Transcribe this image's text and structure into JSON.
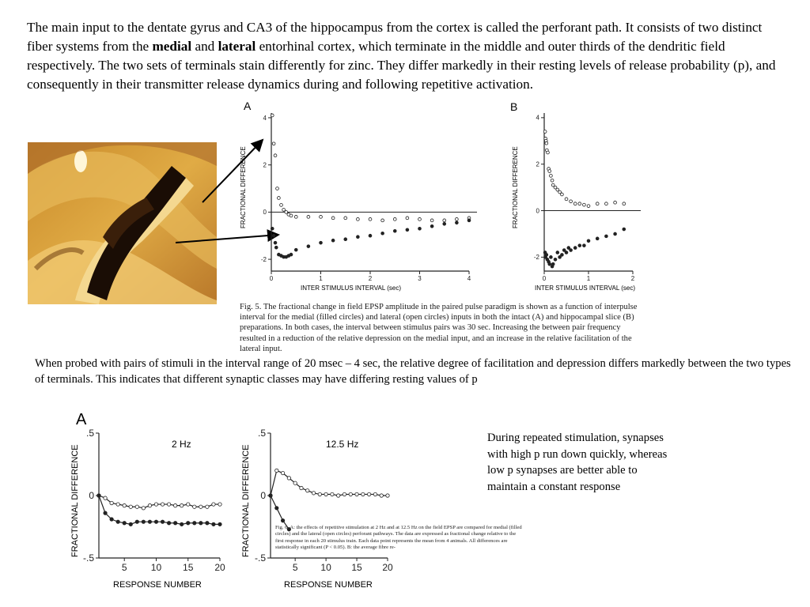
{
  "intro": {
    "part1": "The main input to the dentate gyrus and CA3 of the hippocampus from the cortex is called the perforant path.  It consists of two distinct fiber systems from the ",
    "bold1": "medial",
    "part2": " and ",
    "bold2": "lateral",
    "part3": " entorhinal cortex, which terminate in the middle and outer thirds of the dendritic field respectively.  The two sets of terminals stain differently for zinc. They differ markedly in their resting levels of release probability (p), and consequently in their transmitter release dynamics during and following repetitive activation."
  },
  "fig5": {
    "panel_a_label": "A",
    "panel_b_label": "B",
    "ylabel": "FRACTIONAL  DIFFERENCE",
    "xlabel": "INTER  STIMULUS  INTERVAL  (sec)",
    "caption": "Fig. 5. The fractional change in field EPSP amplitude in the paired pulse paradigm is shown as a function of interpulse interval for the medial (filled circles) and lateral (open circles) inputs in both the intact (A) and hippocampal slice (B) preparations. In both cases, the interval between stimulus pairs was 30 sec. Increasing the between pair frequency resulted in a reduction of the relative depression on the medial input, and an increase in the relative facilitation of the lateral input."
  },
  "middle_text": "When probed with pairs of stimuli in the interval range of 20 msec – 4 sec, the relative degree of facilitation and depression differs markedly between the two types of terminals.  This indicates that different synaptic classes may have differing resting values of p",
  "fig6": {
    "panel_label": "A",
    "ylabel": "FRACTIONAL  DIFFERENCE",
    "xlabel": "RESPONSE  NUMBER",
    "left_title": "2 Hz",
    "right_title": "12.5 Hz",
    "caption": "Fig. 6. A: the effects of repetitive stimulation at 2 Hz and at 12.5 Hz on the field EPSP are compared for medial (filled circles) and the lateral (open circles) perforant pathways. The data are expressed as fractional change relative to the first response in each 20 stimulus train. Each data point represents the mean from 4 animals. All differences are statistically significant (P < 0.05). B: the average fibre re-"
  },
  "side_text": "During repeated stimulation, synapses with high p run down quickly, whereas low p synapses are better able to maintain a constant response",
  "colors": {
    "fig_ink": "#222222",
    "stain_dark": "#1a0d05",
    "stain_gold": "#d9a23c"
  },
  "chart_data": [
    {
      "type": "scatter",
      "panel": "Fig. 5 A",
      "xlabel": "INTER  STIMULUS  INTERVAL  (sec)",
      "ylabel": "FRACTIONAL  DIFFERENCE",
      "xlim": [
        0,
        4
      ],
      "ylim": [
        -2.5,
        4.2
      ],
      "xticks": [
        0,
        1,
        2,
        3,
        4
      ],
      "yticks": [
        -2,
        0,
        2,
        4
      ],
      "series": [
        {
          "marker": "open",
          "x": [
            0.02,
            0.05,
            0.08,
            0.12,
            0.15,
            0.2,
            0.25,
            0.3,
            0.35,
            0.4,
            0.5,
            0.75,
            1.0,
            1.25,
            1.5,
            1.75,
            2.0,
            2.25,
            2.5,
            2.75,
            3.0,
            3.25,
            3.5,
            3.75,
            4.0
          ],
          "y": [
            4.1,
            2.9,
            2.4,
            1.0,
            0.6,
            0.3,
            0.1,
            0.0,
            -0.1,
            -0.15,
            -0.2,
            -0.2,
            -0.2,
            -0.25,
            -0.25,
            -0.3,
            -0.3,
            -0.35,
            -0.3,
            -0.25,
            -0.3,
            -0.35,
            -0.35,
            -0.3,
            -0.25
          ]
        },
        {
          "marker": "filled",
          "x": [
            0.02,
            0.05,
            0.08,
            0.1,
            0.15,
            0.2,
            0.25,
            0.3,
            0.35,
            0.4,
            0.5,
            0.75,
            1.0,
            1.25,
            1.5,
            1.75,
            2.0,
            2.25,
            2.5,
            2.75,
            3.0,
            3.25,
            3.5,
            3.75,
            4.0
          ],
          "y": [
            -0.7,
            -1.0,
            -1.3,
            -1.5,
            -1.8,
            -1.85,
            -1.9,
            -1.9,
            -1.85,
            -1.8,
            -1.6,
            -1.45,
            -1.3,
            -1.2,
            -1.15,
            -1.05,
            -1.0,
            -0.9,
            -0.8,
            -0.75,
            -0.7,
            -0.6,
            -0.5,
            -0.45,
            -0.35
          ]
        }
      ]
    },
    {
      "type": "scatter",
      "panel": "Fig. 5 B",
      "xlabel": "INTER  STIMULUS  INTERVAL  (sec)",
      "ylabel": "FRACTIONAL  DIFFERENCE",
      "xlim": [
        0,
        2
      ],
      "ylim": [
        -2.6,
        4.2
      ],
      "xticks": [
        0,
        1,
        2
      ],
      "yticks": [
        -2,
        0,
        2,
        4
      ],
      "series": [
        {
          "marker": "open",
          "x": [
            0.02,
            0.03,
            0.04,
            0.05,
            0.06,
            0.08,
            0.1,
            0.12,
            0.15,
            0.18,
            0.2,
            0.25,
            0.3,
            0.35,
            0.4,
            0.5,
            0.6,
            0.7,
            0.8,
            0.9,
            1.0,
            1.2,
            1.4,
            1.6,
            1.8
          ],
          "y": [
            3.4,
            3.1,
            3.0,
            2.9,
            2.6,
            2.5,
            1.8,
            1.7,
            1.5,
            1.3,
            1.1,
            1.0,
            0.9,
            0.8,
            0.7,
            0.5,
            0.4,
            0.3,
            0.3,
            0.25,
            0.2,
            0.3,
            0.3,
            0.35,
            0.3
          ]
        },
        {
          "marker": "filled",
          "x": [
            0.02,
            0.03,
            0.05,
            0.07,
            0.1,
            0.12,
            0.15,
            0.18,
            0.2,
            0.25,
            0.3,
            0.35,
            0.4,
            0.45,
            0.5,
            0.55,
            0.6,
            0.7,
            0.8,
            0.9,
            1.0,
            1.2,
            1.4,
            1.6,
            1.8
          ],
          "y": [
            -1.8,
            -2.0,
            -1.9,
            -2.1,
            -2.2,
            -2.3,
            -2.0,
            -2.4,
            -2.3,
            -2.1,
            -1.8,
            -2.0,
            -1.9,
            -1.7,
            -1.8,
            -1.6,
            -1.7,
            -1.6,
            -1.5,
            -1.5,
            -1.3,
            -1.2,
            -1.1,
            -1.0,
            -0.8
          ]
        }
      ]
    },
    {
      "type": "line",
      "panel": "Fig. 6 A, 2 Hz",
      "title": "2 Hz",
      "xlabel": "RESPONSE  NUMBER",
      "ylabel": "FRACTIONAL  DIFFERENCE",
      "xlim": [
        1,
        20
      ],
      "ylim": [
        -0.5,
        0.5
      ],
      "xticks": [
        5,
        10,
        15,
        20
      ],
      "yticks": [
        -0.5,
        0,
        0.5
      ],
      "x": [
        1,
        2,
        3,
        4,
        5,
        6,
        7,
        8,
        9,
        10,
        11,
        12,
        13,
        14,
        15,
        16,
        17,
        18,
        19,
        20
      ],
      "series": [
        {
          "marker": "open",
          "values": [
            0,
            -0.02,
            -0.06,
            -0.07,
            -0.08,
            -0.09,
            -0.09,
            -0.1,
            -0.08,
            -0.07,
            -0.07,
            -0.07,
            -0.08,
            -0.08,
            -0.07,
            -0.09,
            -0.09,
            -0.09,
            -0.07,
            -0.07
          ]
        },
        {
          "marker": "filled",
          "values": [
            0,
            -0.14,
            -0.19,
            -0.21,
            -0.22,
            -0.23,
            -0.21,
            -0.21,
            -0.21,
            -0.21,
            -0.21,
            -0.22,
            -0.22,
            -0.23,
            -0.22,
            -0.22,
            -0.22,
            -0.22,
            -0.23,
            -0.23
          ]
        }
      ]
    },
    {
      "type": "line",
      "panel": "Fig. 6 A, 12.5 Hz",
      "title": "12.5 Hz",
      "xlabel": "RESPONSE  NUMBER",
      "ylabel": "FRACTIONAL  DIFFERENCE",
      "xlim": [
        1,
        20
      ],
      "ylim": [
        -0.5,
        0.5
      ],
      "xticks": [
        5,
        10,
        15,
        20
      ],
      "yticks": [
        -0.5,
        0,
        0.5
      ],
      "x": [
        1,
        2,
        3,
        4,
        5,
        6,
        7,
        8,
        9,
        10,
        11,
        12,
        13,
        14,
        15,
        16,
        17,
        18,
        19,
        20
      ],
      "series": [
        {
          "marker": "open",
          "values": [
            0,
            0.2,
            0.18,
            0.14,
            0.1,
            0.06,
            0.04,
            0.02,
            0.01,
            0.01,
            0.01,
            0.0,
            0.01,
            0.01,
            0.01,
            0.01,
            0.01,
            0.01,
            0.0,
            0.0
          ]
        },
        {
          "marker": "filled",
          "x": [
            1,
            2,
            3,
            4
          ],
          "values": [
            0,
            -0.1,
            -0.2,
            -0.27
          ]
        }
      ]
    }
  ]
}
